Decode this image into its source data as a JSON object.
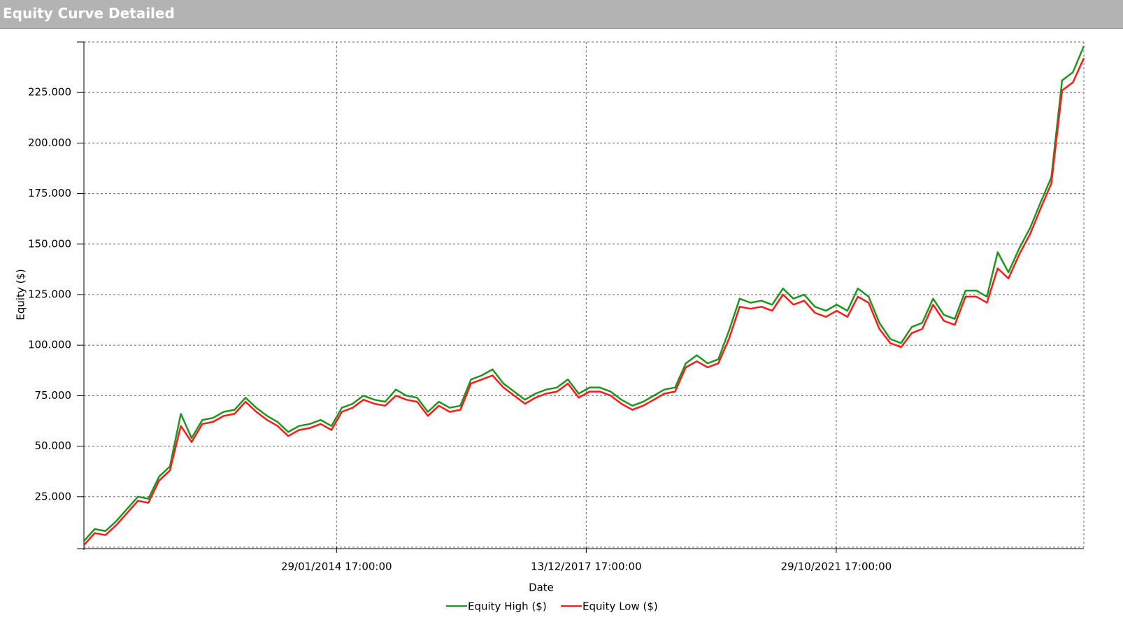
{
  "header": {
    "title": "Equity Curve Detailed"
  },
  "chart_data": {
    "type": "line",
    "x_label": "Date",
    "y_label": "Equity ($)",
    "x": [
      "2010-03-01",
      "2010-05-01",
      "2010-07-01",
      "2010-09-01",
      "2010-11-01",
      "2011-01-01",
      "2011-03-01",
      "2011-05-01",
      "2011-07-01",
      "2011-09-01",
      "2011-11-01",
      "2012-01-01",
      "2012-03-01",
      "2012-05-01",
      "2012-07-01",
      "2012-09-01",
      "2012-11-01",
      "2013-01-01",
      "2013-03-01",
      "2013-05-01",
      "2013-07-01",
      "2013-09-01",
      "2013-11-01",
      "2014-01-01",
      "2014-03-01",
      "2014-05-01",
      "2014-07-01",
      "2014-09-01",
      "2014-11-01",
      "2015-01-01",
      "2015-03-01",
      "2015-05-01",
      "2015-07-01",
      "2015-09-01",
      "2015-11-01",
      "2016-01-01",
      "2016-03-01",
      "2016-05-01",
      "2016-07-01",
      "2016-09-01",
      "2016-11-01",
      "2017-01-01",
      "2017-03-01",
      "2017-05-01",
      "2017-07-01",
      "2017-09-01",
      "2017-11-01",
      "2018-01-01",
      "2018-03-01",
      "2018-05-01",
      "2018-07-01",
      "2018-09-01",
      "2018-11-01",
      "2019-01-01",
      "2019-03-01",
      "2019-05-01",
      "2019-07-01",
      "2019-09-01",
      "2019-11-01",
      "2020-01-01",
      "2020-03-01",
      "2020-05-01",
      "2020-07-01",
      "2020-09-01",
      "2020-11-01",
      "2021-01-01",
      "2021-03-01",
      "2021-05-01",
      "2021-07-01",
      "2021-09-01",
      "2021-11-01",
      "2022-01-01",
      "2022-03-01",
      "2022-05-01",
      "2022-07-01",
      "2022-09-01",
      "2022-11-01",
      "2023-01-01",
      "2023-03-01",
      "2023-05-01",
      "2023-07-01",
      "2023-09-01",
      "2023-11-01",
      "2024-01-01",
      "2024-03-01",
      "2024-05-01",
      "2024-07-01",
      "2024-09-01",
      "2024-11-01",
      "2025-01-01",
      "2025-03-01",
      "2025-05-01",
      "2025-07-01",
      "2025-09-01"
    ],
    "series": [
      {
        "name": "Equity High ($)",
        "color": "#1e961e",
        "values": [
          3000,
          9000,
          8000,
          13000,
          19000,
          25000,
          24000,
          35000,
          40000,
          66000,
          54000,
          63000,
          64000,
          67000,
          68000,
          74000,
          69000,
          65000,
          62000,
          57000,
          60000,
          61000,
          63000,
          60000,
          69000,
          71000,
          75000,
          73000,
          72000,
          78000,
          75000,
          74000,
          67000,
          72000,
          69000,
          70000,
          83000,
          85000,
          88000,
          81000,
          77000,
          73000,
          76000,
          78000,
          79000,
          83000,
          76000,
          79000,
          79000,
          77000,
          73000,
          70000,
          72000,
          75000,
          78000,
          79000,
          91000,
          95000,
          91000,
          93000,
          107000,
          123000,
          121000,
          122000,
          120000,
          128000,
          123000,
          125000,
          119000,
          117000,
          120000,
          117000,
          128000,
          124000,
          111000,
          103000,
          101000,
          109000,
          111000,
          123000,
          115000,
          113000,
          127000,
          127000,
          124000,
          146000,
          136000,
          148000,
          158000,
          171000,
          183000,
          231000,
          235000,
          248000
        ]
      },
      {
        "name": "Equity Low ($)",
        "color": "#ff1a1a",
        "values": [
          1000,
          7000,
          6000,
          11000,
          17000,
          23000,
          22000,
          33000,
          38000,
          60000,
          52000,
          61000,
          62000,
          65000,
          66000,
          72000,
          67000,
          63000,
          60000,
          55000,
          58000,
          59000,
          61000,
          58000,
          67000,
          69000,
          73000,
          71000,
          70000,
          75000,
          73000,
          72000,
          65000,
          70000,
          67000,
          68000,
          81000,
          83000,
          85000,
          79000,
          75000,
          71000,
          74000,
          76000,
          77000,
          81000,
          74000,
          77000,
          77000,
          75000,
          71000,
          68000,
          70000,
          73000,
          76000,
          77000,
          89000,
          92000,
          89000,
          91000,
          103000,
          119000,
          118000,
          119000,
          117000,
          125000,
          120000,
          122000,
          116000,
          114000,
          117000,
          114000,
          124000,
          121000,
          108000,
          101000,
          99000,
          106000,
          108000,
          120000,
          112000,
          110000,
          124000,
          124000,
          121000,
          138000,
          133000,
          145000,
          155000,
          168000,
          180000,
          226000,
          230000,
          242000
        ]
      }
    ],
    "xlim": [
      "2010-03-01",
      "2025-09-01"
    ],
    "xticks": [
      {
        "value": "2014-01-29T17:00:00Z",
        "label": "29/01/2014 17:00:00"
      },
      {
        "value": "2017-12-13T17:00:00Z",
        "label": "13/12/2017 17:00:00"
      },
      {
        "value": "2021-10-29T17:00:00Z",
        "label": "29/10/2021 17:00:00"
      }
    ],
    "ylim": [
      0,
      250000
    ],
    "yticks": [
      {
        "value": 25000,
        "label": "25.000"
      },
      {
        "value": 50000,
        "label": "50.000"
      },
      {
        "value": 75000,
        "label": "75.000"
      },
      {
        "value": 100000,
        "label": "100.000"
      },
      {
        "value": 125000,
        "label": "125.000"
      },
      {
        "value": 150000,
        "label": "150.000"
      },
      {
        "value": 175000,
        "label": "175.000"
      },
      {
        "value": 200000,
        "label": "200.000"
      },
      {
        "value": 225000,
        "label": "225.000"
      }
    ],
    "grid": true,
    "legend": "bottom"
  }
}
